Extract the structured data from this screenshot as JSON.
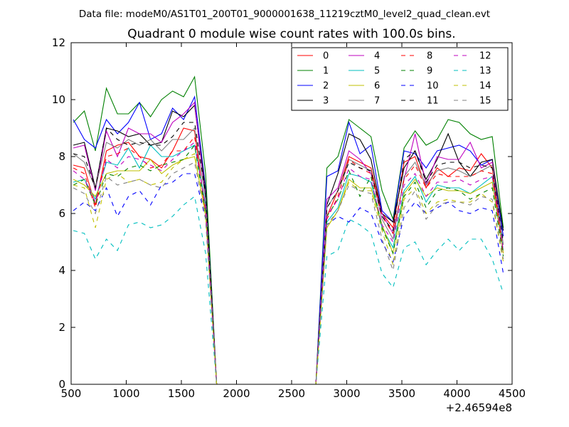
{
  "header": {
    "suptitle": "Data file: modeM0/AS1T01_200T01_9000001638_11219cztM0_level2_quad_clean.evt",
    "title": "Quadrant 0 module wise count rates with 100.0s bins."
  },
  "chart_data": {
    "type": "line",
    "title": "Quadrant 0 module wise count rates with 100.0s bins.",
    "xlabel": "",
    "ylabel": "",
    "x_offset_label": "+2.46594e8",
    "xlim": [
      500,
      4500
    ],
    "ylim": [
      0,
      12
    ],
    "xticks": [
      500,
      1000,
      1500,
      2000,
      2500,
      3000,
      3500,
      4000,
      4500
    ],
    "yticks": [
      0,
      2,
      4,
      6,
      8,
      10,
      12
    ],
    "grid": false,
    "legend_position": "top-right",
    "legend_columns": 4,
    "x": [
      520,
      620,
      720,
      820,
      920,
      1020,
      1120,
      1220,
      1320,
      1420,
      1520,
      1620,
      1720,
      1820,
      1920,
      2020,
      2120,
      2220,
      2320,
      2420,
      2520,
      2620,
      2720,
      2820,
      2920,
      3020,
      3120,
      3220,
      3320,
      3420,
      3520,
      3620,
      3720,
      3820,
      3920,
      4020,
      4120,
      4220,
      4320,
      4420
    ],
    "series": [
      {
        "name": "0",
        "color": "#ff0000",
        "dash": "solid",
        "values": [
          7.7,
          7.6,
          6.3,
          8.2,
          8.4,
          8.5,
          8.0,
          7.9,
          7.6,
          8.2,
          9.0,
          8.9,
          6.0,
          0,
          0,
          0,
          0,
          0,
          0,
          0,
          0,
          0,
          0,
          5.9,
          6.8,
          8.0,
          7.8,
          7.6,
          6.0,
          5.5,
          7.8,
          8.0,
          6.9,
          7.6,
          7.3,
          7.6,
          7.5,
          8.1,
          7.6,
          4.6
        ]
      },
      {
        "name": "1",
        "color": "#008000",
        "dash": "solid",
        "values": [
          9.2,
          9.6,
          8.2,
          10.4,
          9.5,
          9.5,
          9.9,
          9.4,
          10.0,
          10.3,
          10.1,
          10.8,
          7.4,
          0,
          0,
          0,
          0,
          0,
          0,
          0,
          0,
          0,
          0,
          7.6,
          8.0,
          9.3,
          9.0,
          8.7,
          6.8,
          5.8,
          8.3,
          8.9,
          8.4,
          8.6,
          9.3,
          9.2,
          8.8,
          8.6,
          8.7,
          5.5
        ]
      },
      {
        "name": "2",
        "color": "#0000ff",
        "dash": "solid",
        "values": [
          9.3,
          8.6,
          8.3,
          9.3,
          8.8,
          9.2,
          9.9,
          8.6,
          8.8,
          9.7,
          9.3,
          10.1,
          6.9,
          0,
          0,
          0,
          0,
          0,
          0,
          0,
          0,
          0,
          0,
          7.3,
          7.5,
          9.2,
          8.1,
          8.4,
          6.1,
          5.7,
          8.2,
          8.1,
          7.6,
          8.2,
          8.3,
          8.4,
          8.2,
          7.7,
          7.9,
          5.2
        ]
      },
      {
        "name": "3",
        "color": "#000000",
        "dash": "solid",
        "values": [
          8.4,
          8.5,
          6.9,
          9.0,
          8.9,
          8.7,
          8.8,
          8.4,
          8.5,
          9.6,
          9.4,
          9.8,
          6.8,
          0,
          0,
          0,
          0,
          0,
          0,
          0,
          0,
          0,
          0,
          6.3,
          7.4,
          8.8,
          8.6,
          7.9,
          6.0,
          5.7,
          7.6,
          8.2,
          7.2,
          7.9,
          8.8,
          7.8,
          7.3,
          7.8,
          7.9,
          5.4
        ]
      },
      {
        "name": "4",
        "color": "#bf00bf",
        "dash": "solid",
        "values": [
          8.3,
          8.4,
          6.8,
          8.9,
          8.0,
          9.0,
          8.8,
          8.8,
          8.5,
          9.2,
          9.5,
          9.9,
          6.5,
          0,
          0,
          0,
          0,
          0,
          0,
          0,
          0,
          0,
          0,
          6.5,
          6.9,
          8.2,
          7.9,
          7.4,
          6.0,
          5.3,
          7.2,
          8.8,
          7.0,
          8.0,
          7.9,
          7.9,
          8.5,
          7.6,
          7.8,
          4.9
        ]
      },
      {
        "name": "5",
        "color": "#00bfbf",
        "dash": "solid",
        "values": [
          7.1,
          7.2,
          6.5,
          7.8,
          7.7,
          8.3,
          7.6,
          8.4,
          8.0,
          8.0,
          8.2,
          8.4,
          6.3,
          0,
          0,
          0,
          0,
          0,
          0,
          0,
          0,
          0,
          0,
          5.7,
          6.2,
          7.4,
          7.3,
          7.1,
          5.5,
          4.8,
          6.8,
          7.3,
          6.4,
          7.0,
          6.9,
          6.9,
          6.7,
          7.0,
          7.3,
          4.7
        ]
      },
      {
        "name": "6",
        "color": "#bfbf00",
        "dash": "solid",
        "values": [
          7.2,
          7.0,
          6.6,
          7.4,
          7.5,
          7.5,
          7.5,
          7.9,
          7.4,
          7.7,
          7.9,
          8.0,
          6.0,
          0,
          0,
          0,
          0,
          0,
          0,
          0,
          0,
          0,
          0,
          5.5,
          6.1,
          7.2,
          6.9,
          6.9,
          5.6,
          4.6,
          6.7,
          7.2,
          6.6,
          6.9,
          6.8,
          6.8,
          6.7,
          6.9,
          7.1,
          4.6
        ]
      },
      {
        "name": "7",
        "color": "#808080",
        "dash": "solid",
        "values": [
          8.1,
          7.8,
          6.9,
          8.5,
          8.3,
          8.6,
          8.4,
          8.6,
          8.2,
          8.6,
          8.6,
          9.0,
          6.5,
          0,
          0,
          0,
          0,
          0,
          0,
          0,
          0,
          0,
          0,
          6.2,
          6.8,
          7.9,
          7.7,
          7.5,
          5.8,
          5.1,
          7.3,
          7.8,
          7.0,
          7.5,
          7.6,
          7.5,
          7.3,
          7.5,
          7.7,
          4.9
        ]
      },
      {
        "name": "8",
        "color": "#ff0000",
        "dash": "dashed",
        "values": [
          7.6,
          7.4,
          6.2,
          8.0,
          8.1,
          8.3,
          8.0,
          7.6,
          7.7,
          8.2,
          8.2,
          8.7,
          6.1,
          0,
          0,
          0,
          0,
          0,
          0,
          0,
          0,
          0,
          0,
          5.8,
          6.6,
          7.9,
          7.6,
          7.4,
          5.9,
          5.3,
          7.2,
          7.7,
          6.9,
          7.4,
          7.3,
          7.3,
          7.3,
          7.5,
          7.4,
          4.6
        ]
      },
      {
        "name": "9",
        "color": "#008000",
        "dash": "dashed",
        "values": [
          7.0,
          7.2,
          6.3,
          7.4,
          7.3,
          7.6,
          7.7,
          7.5,
          7.7,
          7.8,
          7.9,
          8.4,
          6.0,
          0,
          0,
          0,
          0,
          0,
          0,
          0,
          0,
          0,
          0,
          5.9,
          6.5,
          7.5,
          6.6,
          7.3,
          5.5,
          4.6,
          6.6,
          7.1,
          6.2,
          6.8,
          6.9,
          6.8,
          6.5,
          6.7,
          6.9,
          4.5
        ]
      },
      {
        "name": "10",
        "color": "#0000ff",
        "dash": "dashed",
        "values": [
          6.1,
          6.4,
          6.1,
          6.9,
          5.9,
          6.6,
          6.8,
          6.3,
          7.0,
          7.1,
          7.4,
          7.4,
          5.8,
          0,
          0,
          0,
          0,
          0,
          0,
          0,
          0,
          0,
          0,
          5.6,
          5.9,
          5.7,
          6.2,
          6.0,
          5.0,
          4.3,
          5.9,
          6.4,
          6.0,
          6.2,
          6.4,
          6.1,
          6.0,
          6.2,
          6.1,
          3.9
        ]
      },
      {
        "name": "11",
        "color": "#000000",
        "dash": "dashed",
        "values": [
          8.1,
          8.0,
          6.9,
          9.0,
          8.6,
          8.4,
          8.5,
          8.4,
          8.4,
          8.7,
          9.2,
          9.2,
          6.7,
          0,
          0,
          0,
          0,
          0,
          0,
          0,
          0,
          0,
          0,
          6.2,
          6.8,
          7.8,
          7.6,
          7.5,
          5.9,
          5.4,
          7.9,
          8.2,
          7.1,
          7.7,
          7.8,
          7.8,
          7.6,
          7.7,
          7.6,
          5.0
        ]
      },
      {
        "name": "12",
        "color": "#bf00bf",
        "dash": "dashed",
        "values": [
          7.5,
          7.2,
          6.4,
          7.9,
          7.6,
          8.0,
          7.9,
          7.7,
          7.5,
          7.9,
          8.2,
          8.5,
          6.2,
          0,
          0,
          0,
          0,
          0,
          0,
          0,
          0,
          0,
          0,
          5.9,
          6.5,
          7.6,
          7.3,
          7.2,
          5.6,
          5.0,
          7.0,
          7.4,
          6.6,
          7.1,
          7.1,
          7.2,
          7.0,
          7.2,
          7.3,
          4.7
        ]
      },
      {
        "name": "13",
        "color": "#00bfbf",
        "dash": "dashed",
        "values": [
          5.4,
          5.3,
          4.4,
          5.1,
          4.7,
          5.6,
          5.7,
          5.5,
          5.6,
          5.9,
          6.3,
          6.6,
          4.6,
          0,
          0,
          0,
          0,
          0,
          0,
          0,
          0,
          0,
          0,
          4.5,
          4.7,
          5.8,
          5.6,
          5.3,
          3.9,
          3.4,
          4.8,
          5.0,
          4.2,
          4.7,
          5.1,
          4.7,
          5.1,
          5.1,
          4.4,
          3.2
        ]
      },
      {
        "name": "14",
        "color": "#bfbf00",
        "dash": "dashed",
        "values": [
          7.0,
          6.9,
          5.5,
          7.2,
          7.4,
          7.1,
          7.2,
          7.0,
          7.1,
          7.6,
          7.9,
          8.1,
          5.9,
          0,
          0,
          0,
          0,
          0,
          0,
          0,
          0,
          0,
          0,
          5.5,
          6.1,
          7.1,
          6.8,
          6.8,
          5.4,
          4.2,
          6.5,
          6.9,
          6.0,
          6.4,
          6.5,
          6.4,
          6.4,
          6.7,
          6.4,
          4.3
        ]
      },
      {
        "name": "15",
        "color": "#808080",
        "dash": "dashed",
        "values": [
          6.9,
          6.7,
          6.0,
          7.3,
          7.0,
          7.1,
          7.2,
          7.0,
          6.9,
          7.4,
          7.6,
          7.8,
          5.8,
          0,
          0,
          0,
          0,
          0,
          0,
          0,
          0,
          0,
          0,
          5.6,
          6.1,
          7.0,
          6.8,
          6.7,
          5.1,
          4.0,
          6.2,
          6.8,
          5.8,
          6.3,
          6.4,
          6.4,
          6.3,
          6.6,
          6.5,
          4.4
        ]
      }
    ]
  }
}
